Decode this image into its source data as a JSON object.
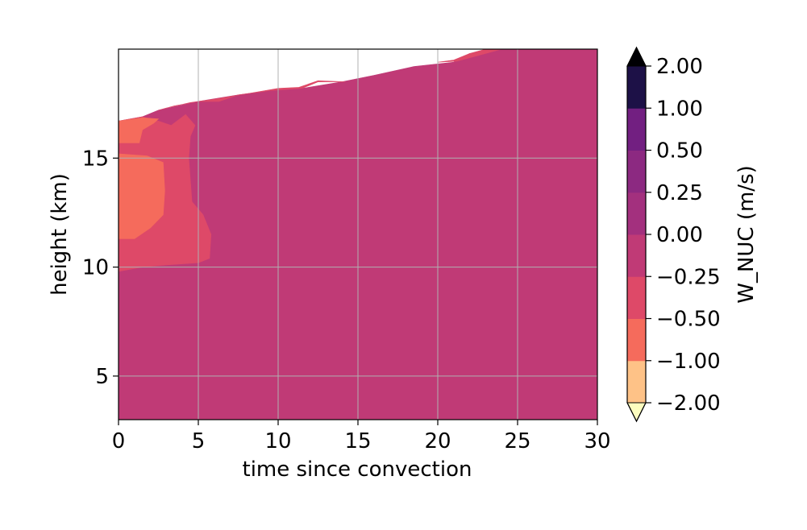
{
  "chart_data": {
    "type": "contourf",
    "xlabel": "time since convection",
    "ylabel": "height (km)",
    "xlim": [
      0,
      30
    ],
    "ylim": [
      3,
      20
    ],
    "xticks": [
      0,
      5,
      10,
      15,
      20,
      25,
      30
    ],
    "yticks": [
      5,
      10,
      15
    ],
    "grid": true,
    "colorbar": {
      "label": "W_NUC (m/s)",
      "levels": [
        -2.0,
        -1.0,
        -0.5,
        -0.25,
        0.0,
        0.25,
        0.5,
        1.0,
        2.0
      ],
      "tick_labels": [
        "−2.00",
        "−1.00",
        "−0.50",
        "−0.25",
        "0.00",
        "0.25",
        "0.50",
        "1.00",
        "2.00"
      ],
      "colors": [
        "#fec287",
        "#f56b5c",
        "#de4968",
        "#c03a76",
        "#a3307e",
        "#8c2981",
        "#721f81",
        "#1d1147"
      ],
      "extend_low_color": "#fcfdbf",
      "extend_high_color": "#000004",
      "extend": "both"
    },
    "regions": [
      {
        "level_range": [
          -0.5,
          -0.25
        ],
        "color": "#c03a76",
        "polygon": [
          [
            0,
            3
          ],
          [
            30,
            3
          ],
          [
            30,
            20
          ],
          [
            24,
            20
          ],
          [
            22,
            19.8
          ],
          [
            21,
            19.4
          ],
          [
            18.5,
            19.2
          ],
          [
            16,
            18.8
          ],
          [
            14,
            18.5
          ],
          [
            11.5,
            18.2
          ],
          [
            9.5,
            18.1
          ],
          [
            7.5,
            17.9
          ],
          [
            5,
            17.6
          ],
          [
            2.5,
            17.2
          ],
          [
            1.5,
            16.9
          ],
          [
            0,
            16.7
          ]
        ]
      },
      {
        "level_range": [
          -1.0,
          -0.5
        ],
        "color": "#de4968",
        "polygon": [
          [
            0,
            9.8
          ],
          [
            1.5,
            10.0
          ],
          [
            3,
            10.1
          ],
          [
            5,
            10.2
          ],
          [
            5.7,
            10.4
          ],
          [
            5.8,
            11.5
          ],
          [
            5.3,
            12.4
          ],
          [
            4.6,
            13.0
          ],
          [
            4.5,
            14.0
          ],
          [
            4.4,
            15.0
          ],
          [
            4.5,
            16.0
          ],
          [
            4.8,
            16.5
          ],
          [
            4.2,
            17.0
          ],
          [
            3.3,
            16.5
          ],
          [
            2.5,
            16.7
          ],
          [
            1.5,
            16.9
          ],
          [
            0,
            16.7
          ]
        ]
      },
      {
        "level_range": [
          -1.0,
          -0.5
        ],
        "color": "#de4968",
        "polygon": [
          [
            2.5,
            17.2
          ],
          [
            3.5,
            17.4
          ],
          [
            5,
            17.6
          ],
          [
            6.3,
            17.6
          ],
          [
            7.5,
            17.9
          ],
          [
            9.5,
            18.1
          ],
          [
            11.5,
            18.2
          ],
          [
            12.5,
            18.5
          ],
          [
            14,
            18.5
          ],
          [
            14.2,
            18.5
          ],
          [
            12.5,
            18.55
          ],
          [
            11.3,
            18.25
          ],
          [
            10,
            18.2
          ],
          [
            8,
            17.95
          ],
          [
            6,
            17.7
          ],
          [
            4.5,
            17.55
          ],
          [
            3,
            17.3
          ]
        ]
      },
      {
        "level_range": [
          -1.0,
          -0.5
        ],
        "color": "#de4968",
        "polygon": [
          [
            20,
            19.4
          ],
          [
            21,
            19.5
          ],
          [
            22,
            19.8
          ],
          [
            23,
            20
          ],
          [
            24,
            20
          ],
          [
            22.5,
            19.7
          ],
          [
            21.2,
            19.45
          ]
        ]
      },
      {
        "level_range": [
          -2.0,
          -1.0
        ],
        "color": "#f56b5c",
        "polygon": [
          [
            0,
            11.3
          ],
          [
            1,
            11.3
          ],
          [
            2,
            11.8
          ],
          [
            2.8,
            12.4
          ],
          [
            2.9,
            13.5
          ],
          [
            2.8,
            14.8
          ],
          [
            1.8,
            15.1
          ],
          [
            0,
            15.2
          ]
        ]
      },
      {
        "level_range": [
          -2.0,
          -1.0
        ],
        "color": "#f56b5c",
        "polygon": [
          [
            0,
            15.7
          ],
          [
            1.3,
            15.7
          ],
          [
            1.5,
            16.3
          ],
          [
            2.2,
            16.6
          ],
          [
            2.5,
            16.8
          ],
          [
            1.5,
            16.85
          ],
          [
            0,
            16.7
          ]
        ]
      }
    ]
  }
}
